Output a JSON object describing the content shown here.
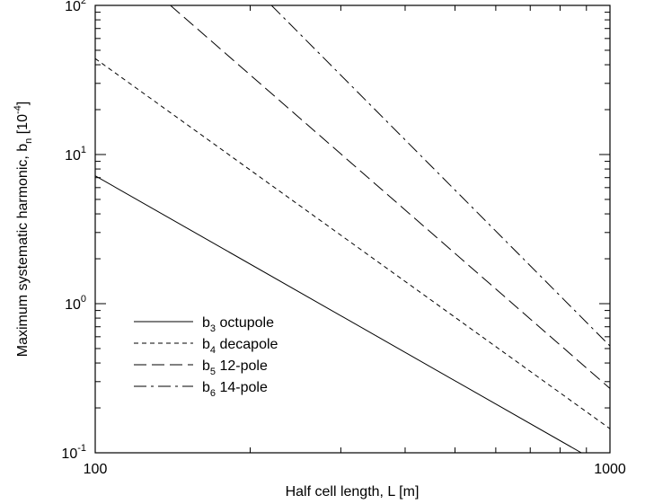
{
  "chart_data": {
    "type": "line",
    "xlabel": "Half cell length, L [m]",
    "ylabel": {
      "main": "Maximum systematic harmonic, b",
      "sub": "n",
      "unit_open": " [10",
      "unit_exp": "-4",
      "unit_close": "]"
    },
    "x_scale": "log",
    "y_scale": "log",
    "xlim": [
      100,
      1000
    ],
    "ylim": [
      0.1,
      100
    ],
    "x_ticks": [
      {
        "value": 100,
        "label": "100"
      },
      {
        "value": 1000,
        "label": "1000"
      }
    ],
    "y_ticks": [
      {
        "value": 0.1,
        "base": "10",
        "exp": "-1"
      },
      {
        "value": 1,
        "base": "10",
        "exp": "0"
      },
      {
        "value": 10,
        "base": "10",
        "exp": "1"
      },
      {
        "value": 100,
        "base": "10",
        "exp": "2"
      }
    ],
    "grid": false,
    "legend_position": "lower-left",
    "series": [
      {
        "name": "b3 octupole",
        "label_main": "b",
        "label_sub": "3",
        "label_rest": " octupole",
        "dash": "solid",
        "points": [
          [
            100,
            7.2
          ],
          [
            880,
            0.1
          ]
        ]
      },
      {
        "name": "b4 decapole",
        "label_main": "b",
        "label_sub": "4",
        "label_rest": " decapole",
        "dash": "short-dash",
        "points": [
          [
            100,
            44
          ],
          [
            1000,
            0.145
          ]
        ]
      },
      {
        "name": "b5 12-pole",
        "label_main": "b",
        "label_sub": "5",
        "label_rest": " 12-pole",
        "dash": "long-dash",
        "points": [
          [
            140,
            100
          ],
          [
            1000,
            0.27
          ]
        ]
      },
      {
        "name": "b6 14-pole",
        "label_main": "b",
        "label_sub": "6",
        "label_rest": " 14-pole",
        "dash": "dash-dot",
        "points": [
          [
            220,
            100
          ],
          [
            1000,
            0.52
          ]
        ]
      }
    ]
  }
}
